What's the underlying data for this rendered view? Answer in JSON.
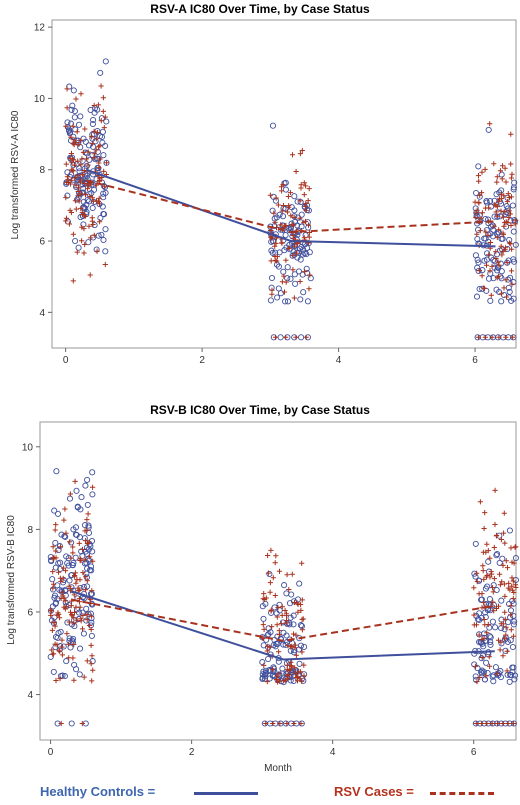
{
  "colors": {
    "healthy": "#3f4f9c",
    "rsv": "#a8321e",
    "legend_healthy_text": "#3e66b0",
    "legend_rsv_text": "#b5321e"
  },
  "legend": {
    "healthy_label": "Healthy Controls =",
    "rsv_label": "RSV Cases ="
  },
  "chart_data": [
    {
      "type": "scatter",
      "title": "RSV-A IC80 Over Time, by Case Status",
      "xlabel": "",
      "ylabel": "Log transformed RSV-A IC80",
      "xlim": [
        -0.2,
        6.6
      ],
      "ylim": [
        3.0,
        12.2
      ],
      "xticks": [
        0,
        2,
        4,
        6
      ],
      "yticks": [
        4,
        6,
        8,
        10,
        12
      ],
      "timepoints": [
        0,
        3,
        6
      ],
      "jitter_width": 0.6,
      "lod": 3.3,
      "series": [
        {
          "name": "Healthy Controls",
          "marker": "circle",
          "line": "solid",
          "means": [
            8.0,
            6.0,
            5.85
          ],
          "point_counts": [
            150,
            115,
            115
          ],
          "distribution": [
            {
              "center": 8.0,
              "sd": 1.15,
              "min": 5.5,
              "max": 11.7
            },
            {
              "center": 6.0,
              "sd": 0.85,
              "min": 4.3,
              "max": 9.9
            },
            {
              "center": 5.9,
              "sd": 1.0,
              "min": 4.3,
              "max": 10.3
            }
          ],
          "lod_counts": [
            0,
            6,
            8
          ]
        },
        {
          "name": "RSV Cases",
          "marker": "plus",
          "line": "dashed",
          "means": [
            7.7,
            6.25,
            6.55
          ],
          "point_counts": [
            130,
            90,
            100
          ],
          "distribution": [
            {
              "center": 7.7,
              "sd": 1.1,
              "min": 4.5,
              "max": 10.7
            },
            {
              "center": 6.25,
              "sd": 0.9,
              "min": 4.4,
              "max": 10.7
            },
            {
              "center": 6.5,
              "sd": 1.0,
              "min": 4.4,
              "max": 10.9
            }
          ],
          "lod_counts": [
            0,
            4,
            6
          ]
        }
      ]
    },
    {
      "type": "scatter",
      "title": "RSV-B IC80 Over Time, by Case Status",
      "xlabel": "Month",
      "ylabel": "Log transformed RSV-B IC80",
      "xlim": [
        -0.15,
        6.6
      ],
      "ylim": [
        2.9,
        10.6
      ],
      "xticks": [
        0,
        2,
        4,
        6
      ],
      "yticks": [
        4,
        6,
        8,
        10
      ],
      "timepoints": [
        0,
        3,
        6
      ],
      "jitter_width": 0.6,
      "lod": 3.3,
      "series": [
        {
          "name": "Healthy Controls",
          "marker": "circle",
          "line": "solid",
          "means": [
            6.5,
            4.85,
            5.05
          ],
          "point_counts": [
            150,
            110,
            110
          ],
          "distribution": [
            {
              "center": 6.5,
              "sd": 1.2,
              "min": 4.3,
              "max": 9.6
            },
            {
              "center": 5.0,
              "sd": 0.9,
              "min": 4.3,
              "max": 9.7
            },
            {
              "center": 5.4,
              "sd": 1.1,
              "min": 4.3,
              "max": 9.3
            }
          ],
          "lod_counts": [
            3,
            8,
            10
          ]
        },
        {
          "name": "RSV Cases",
          "marker": "plus",
          "line": "dashed",
          "means": [
            6.3,
            5.3,
            6.15
          ],
          "point_counts": [
            130,
            95,
            100
          ],
          "distribution": [
            {
              "center": 6.3,
              "sd": 1.2,
              "min": 4.3,
              "max": 9.6
            },
            {
              "center": 5.3,
              "sd": 1.0,
              "min": 4.3,
              "max": 10.4
            },
            {
              "center": 6.2,
              "sd": 1.1,
              "min": 4.3,
              "max": 10.3
            }
          ],
          "lod_counts": [
            2,
            6,
            8
          ]
        }
      ]
    }
  ]
}
